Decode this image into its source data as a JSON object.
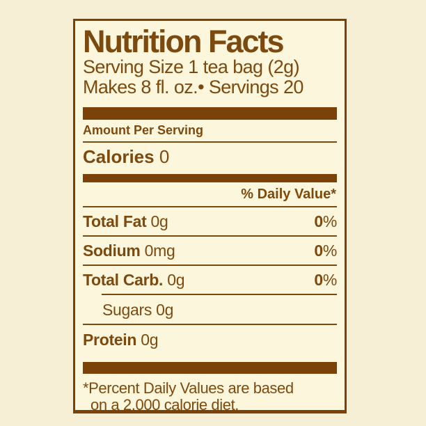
{
  "colors": {
    "page_background": "#f7efd5",
    "label_background": "#fcf6dc",
    "text_brown": "#7c4a0e",
    "bar_brown": "#7a4206"
  },
  "label": {
    "title": "Nutrition Facts",
    "serving_line1": "Serving Size 1 tea bag (2g)",
    "serving_line2": "Makes 8 fl. oz.• Servings 20",
    "amount_per_serving": "Amount Per Serving",
    "calories": {
      "label": "Calories",
      "value": "0"
    },
    "daily_value_header": "% Daily Value*",
    "rows": [
      {
        "name": "Total Fat",
        "amount": "0g",
        "dv_number": "0",
        "dv_sign": "%"
      },
      {
        "name": "Sodium",
        "amount": "0mg",
        "dv_number": "0",
        "dv_sign": "%"
      },
      {
        "name": "Total Carb.",
        "amount": "0g",
        "dv_number": "0",
        "dv_sign": "%"
      }
    ],
    "sub_row": {
      "name": "Sugars",
      "amount": "0g"
    },
    "protein_row": {
      "name": "Protein",
      "amount": "0g"
    },
    "footnote_line1": "*Percent Daily Values are based",
    "footnote_line2": "on a 2,000 calorie diet."
  }
}
